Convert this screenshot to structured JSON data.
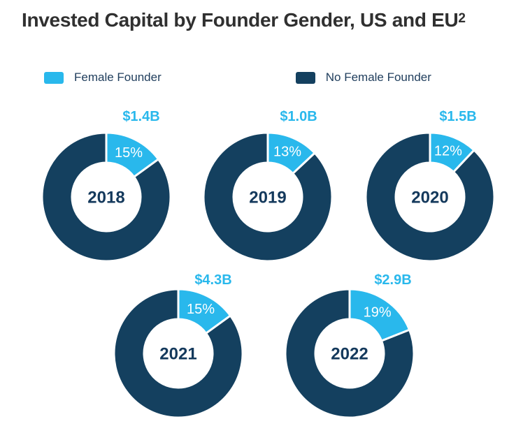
{
  "header": {
    "title": "Invested Capital by Founder Gender, US and EU",
    "title_superscript": "2"
  },
  "legend": {
    "items": [
      {
        "label": "Female Founder",
        "key": "female"
      },
      {
        "label": "No Female Founder",
        "key": "no_female"
      }
    ]
  },
  "colors": {
    "female": "#29B8EC",
    "no_female": "#14405F",
    "title_text": "#303030",
    "legend_text": "#1F3D5C",
    "year_text": "#14395C",
    "pct_text": "#FFFFFF",
    "amount_text": "#29B8EC",
    "background": "#FFFFFF"
  },
  "chart_data": [
    {
      "type": "pie",
      "subtype": "donut",
      "center_label": "2018",
      "categories": [
        "Female Founder",
        "No Female Founder"
      ],
      "values": [
        15,
        85
      ],
      "value_unit": "percent",
      "female_pct_label": "15%",
      "female_amount_label": "$1.4B",
      "slice_start": "12-oclock",
      "direction": "clockwise"
    },
    {
      "type": "pie",
      "subtype": "donut",
      "center_label": "2019",
      "categories": [
        "Female Founder",
        "No Female Founder"
      ],
      "values": [
        13,
        87
      ],
      "value_unit": "percent",
      "female_pct_label": "13%",
      "female_amount_label": "$1.0B",
      "slice_start": "12-oclock",
      "direction": "clockwise"
    },
    {
      "type": "pie",
      "subtype": "donut",
      "center_label": "2020",
      "categories": [
        "Female Founder",
        "No Female Founder"
      ],
      "values": [
        12,
        88
      ],
      "value_unit": "percent",
      "female_pct_label": "12%",
      "female_amount_label": "$1.5B",
      "slice_start": "12-oclock",
      "direction": "clockwise"
    },
    {
      "type": "pie",
      "subtype": "donut",
      "center_label": "2021",
      "categories": [
        "Female Founder",
        "No Female Founder"
      ],
      "values": [
        15,
        85
      ],
      "value_unit": "percent",
      "female_pct_label": "15%",
      "female_amount_label": "$4.3B",
      "slice_start": "12-oclock",
      "direction": "clockwise"
    },
    {
      "type": "pie",
      "subtype": "donut",
      "center_label": "2022",
      "categories": [
        "Female Founder",
        "No Female Founder"
      ],
      "values": [
        19,
        81
      ],
      "value_unit": "percent",
      "female_pct_label": "19%",
      "female_amount_label": "$2.9B",
      "slice_start": "12-oclock",
      "direction": "clockwise"
    }
  ]
}
